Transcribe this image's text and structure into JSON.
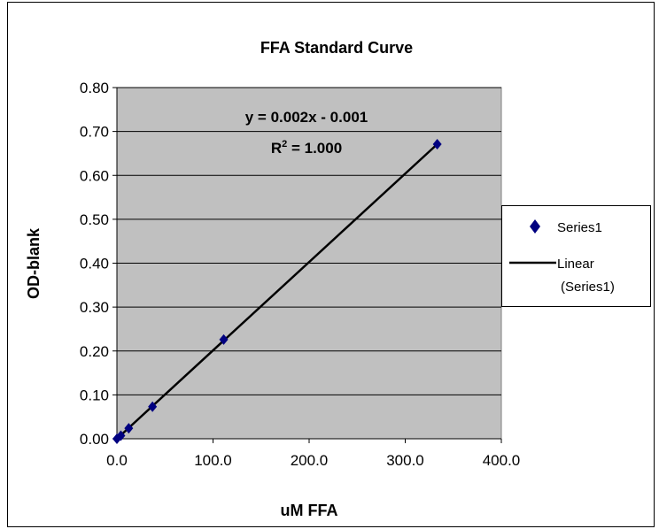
{
  "chart_data": {
    "type": "scatter",
    "title": "FFA Standard Curve",
    "xlabel": "uM FFA",
    "ylabel": "OD-blank",
    "xlim": [
      0,
      400
    ],
    "ylim": [
      0,
      0.8
    ],
    "x_ticks": [
      "0.0",
      "100.0",
      "200.0",
      "300.0",
      "400.0"
    ],
    "y_ticks": [
      "0.00",
      "0.10",
      "0.20",
      "0.30",
      "0.40",
      "0.50",
      "0.60",
      "0.70",
      "0.80"
    ],
    "grid": true,
    "legend_position": "right",
    "series": [
      {
        "name": "Series1",
        "marker": "diamond",
        "color": "#000080",
        "x": [
          0,
          4.1,
          12.3,
          37.0,
          111.1,
          333.3
        ],
        "y": [
          0.0,
          0.007,
          0.024,
          0.073,
          0.226,
          0.671
        ]
      }
    ],
    "trendline": {
      "name": "Linear (Series1)",
      "legend_lines": [
        "Linear",
        "(Series1)"
      ],
      "slope": 0.002,
      "intercept": -0.001,
      "x_range": [
        0,
        333.3
      ],
      "color": "#000000",
      "equation_text": "y = 0.002x - 0.001",
      "r2_prefix": "R",
      "r2_superscript": "2",
      "r2_value": " = 1.000"
    }
  }
}
